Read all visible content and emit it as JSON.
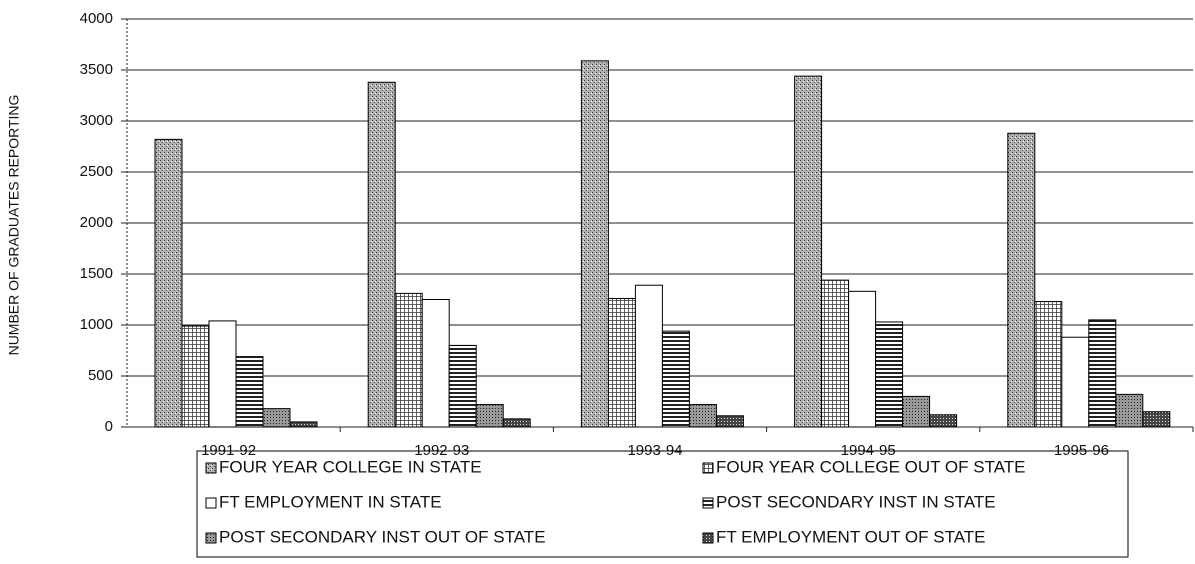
{
  "chart_data": {
    "type": "bar",
    "ylabel": "NUMBER OF GRADUATES REPORTING",
    "categories": [
      "1991-92",
      "1992-93",
      "1993-94",
      "1994-95",
      "1995-96"
    ],
    "series": [
      {
        "name": "FOUR YEAR COLLEGE IN STATE",
        "color": "#8a8a8a",
        "pattern": "stipple",
        "values": [
          2820,
          3380,
          3590,
          3440,
          2880
        ]
      },
      {
        "name": "FOUR YEAR COLLEGE OUT OF STATE",
        "color": "#9a9a9a",
        "pattern": "grid",
        "values": [
          990,
          1310,
          1260,
          1440,
          1230
        ]
      },
      {
        "name": "FT EMPLOYMENT IN STATE",
        "color": "#ffffff",
        "pattern": "solid",
        "values": [
          1040,
          1250,
          1390,
          1330,
          880
        ]
      },
      {
        "name": "POST SECONDARY INST IN STATE",
        "color": "#555555",
        "pattern": "hlines",
        "values": [
          690,
          800,
          940,
          1030,
          1050
        ]
      },
      {
        "name": "POST SECONDARY INST OUT OF STATE",
        "color": "#888888",
        "pattern": "dots",
        "values": [
          180,
          220,
          220,
          300,
          320
        ]
      },
      {
        "name": "FT EMPLOYMENT OUT OF STATE",
        "color": "#444444",
        "pattern": "cross",
        "values": [
          50,
          80,
          110,
          120,
          150
        ]
      }
    ],
    "ylim": [
      0,
      4000
    ],
    "yticks": [
      0,
      500,
      1000,
      1500,
      2000,
      2500,
      3000,
      3500,
      4000
    ],
    "grid": true
  }
}
